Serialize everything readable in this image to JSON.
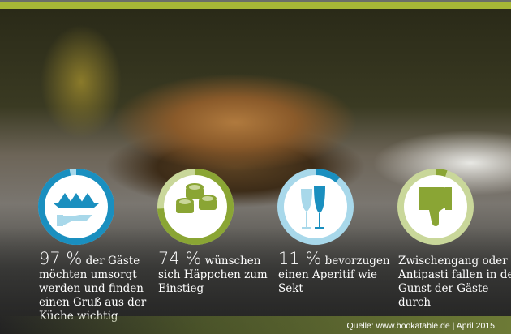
{
  "colors": {
    "blue": "#1a8fbf",
    "blue_light": "#a8d8ea",
    "green": "#8aa534",
    "green_light": "#c9d79a",
    "top_bar": "#a7b736"
  },
  "stats": [
    {
      "percent": 97,
      "value": "97 %",
      "text": " der Gäste möchten umsorgt werden und finden einen Gruß aus der Küche wichtig",
      "icon": "serving-hand-icon",
      "theme": "blue"
    },
    {
      "percent": 74,
      "value": "74 %",
      "text": " wünschen sich Häppchen zum Einstieg",
      "icon": "sushi-rolls-icon",
      "theme": "green"
    },
    {
      "percent": 11,
      "value": "11 %",
      "text": " bevorzugen einen Aperitif wie Sekt",
      "icon": "glasses-icon",
      "theme": "blue"
    },
    {
      "value": "",
      "text": "Zwischengang oder Antipasti fallen in der Gunst der Gäste durch",
      "icon": "thumbs-down-icon",
      "theme": "green"
    }
  ],
  "source": "Quelle: www.bookatable.de | April 2015"
}
